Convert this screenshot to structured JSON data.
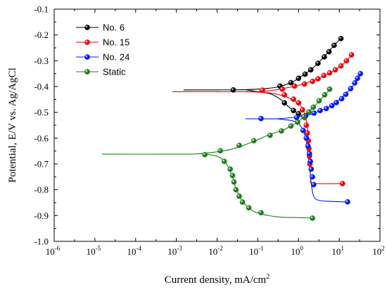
{
  "chart_data": {
    "type": "line",
    "xlabel": "Current density, mA/cm",
    "xlabel_sup": "2",
    "ylabel": "Potential, E/V vs. Ag/AgCl",
    "x_scale": "log",
    "xlim": [
      1e-06,
      100
    ],
    "ylim": [
      -1.0,
      -0.1
    ],
    "x_ticks": [
      {
        "value": 1e-06,
        "base": "10",
        "exp": "-6"
      },
      {
        "value": 1e-05,
        "base": "10",
        "exp": "-5"
      },
      {
        "value": 0.0001,
        "base": "10",
        "exp": "-4"
      },
      {
        "value": 0.001,
        "base": "10",
        "exp": "-3"
      },
      {
        "value": 0.01,
        "base": "10",
        "exp": "-2"
      },
      {
        "value": 0.1,
        "base": "10",
        "exp": "-1"
      },
      {
        "value": 1,
        "base": "10",
        "exp": "0"
      },
      {
        "value": 10,
        "base": "10",
        "exp": "1"
      },
      {
        "value": 100,
        "base": "10",
        "exp": "2"
      }
    ],
    "y_ticks": [
      "-0.1",
      "-0.2",
      "-0.3",
      "-0.4",
      "-0.5",
      "-0.6",
      "-0.7",
      "-0.8",
      "-0.9",
      "-1.0"
    ],
    "grid": false,
    "legend_position": "top-left",
    "series": [
      {
        "name": "No. 6",
        "color": "#000000",
        "line": [
          [
            0.0015,
            -0.413
          ],
          [
            0.01,
            -0.413
          ],
          [
            0.05,
            -0.412
          ],
          [
            0.15,
            -0.408
          ],
          [
            0.3,
            -0.402
          ],
          [
            0.5,
            -0.392
          ],
          [
            0.8,
            -0.378
          ],
          [
            1.2,
            -0.36
          ],
          [
            2,
            -0.335
          ],
          [
            3,
            -0.31
          ],
          [
            5,
            -0.272
          ],
          [
            8,
            -0.235
          ],
          [
            11,
            -0.214
          ]
        ],
        "line2": [
          [
            0.05,
            -0.412
          ],
          [
            0.1,
            -0.42
          ],
          [
            0.2,
            -0.428
          ],
          [
            0.35,
            -0.448
          ],
          [
            0.5,
            -0.47
          ],
          [
            0.7,
            -0.49
          ],
          [
            1.0,
            -0.505
          ],
          [
            1.3,
            -0.515
          ],
          [
            1.6,
            -0.52
          ]
        ],
        "markers": [
          [
            0.025,
            -0.413
          ],
          [
            0.35,
            -0.398
          ],
          [
            0.65,
            -0.385
          ],
          [
            1.0,
            -0.368
          ],
          [
            1.45,
            -0.352
          ],
          [
            2.0,
            -0.335
          ],
          [
            3.0,
            -0.31
          ],
          [
            4.3,
            -0.285
          ],
          [
            5.6,
            -0.265
          ],
          [
            7.5,
            -0.24
          ],
          [
            11,
            -0.214
          ],
          [
            0.45,
            -0.463
          ],
          [
            0.75,
            -0.493
          ],
          [
            1.0,
            -0.505
          ]
        ]
      },
      {
        "name": "No. 15",
        "color": "#e8000b",
        "line": [
          [
            0.0008,
            -0.42
          ],
          [
            0.01,
            -0.42
          ],
          [
            0.05,
            -0.42
          ],
          [
            0.15,
            -0.418
          ],
          [
            0.3,
            -0.412
          ],
          [
            0.6,
            -0.403
          ],
          [
            1.0,
            -0.395
          ],
          [
            2,
            -0.38
          ],
          [
            4,
            -0.36
          ],
          [
            8,
            -0.335
          ],
          [
            13,
            -0.31
          ],
          [
            22,
            -0.272
          ]
        ],
        "line2": [
          [
            0.05,
            -0.42
          ],
          [
            0.2,
            -0.425
          ],
          [
            0.5,
            -0.44
          ],
          [
            0.9,
            -0.46
          ],
          [
            1.2,
            -0.48
          ],
          [
            1.5,
            -0.52
          ],
          [
            1.7,
            -0.58
          ],
          [
            1.8,
            -0.64
          ],
          [
            1.9,
            -0.7
          ],
          [
            2.0,
            -0.76
          ],
          [
            2.3,
            -0.775
          ],
          [
            12,
            -0.776
          ]
        ],
        "markers": [
          [
            0.13,
            -0.414
          ],
          [
            0.4,
            -0.41
          ],
          [
            0.8,
            -0.398
          ],
          [
            1.4,
            -0.39
          ],
          [
            2.2,
            -0.38
          ],
          [
            3.0,
            -0.37
          ],
          [
            4.2,
            -0.357
          ],
          [
            5.8,
            -0.347
          ],
          [
            8.0,
            -0.335
          ],
          [
            11,
            -0.32
          ],
          [
            15,
            -0.3
          ],
          [
            20,
            -0.277
          ],
          [
            0.45,
            -0.432
          ],
          [
            0.75,
            -0.449
          ],
          [
            1.0,
            -0.463
          ],
          [
            1.25,
            -0.49
          ],
          [
            1.4,
            -0.52
          ],
          [
            1.55,
            -0.55
          ],
          [
            1.65,
            -0.58
          ],
          [
            1.75,
            -0.61
          ],
          [
            1.8,
            -0.64
          ],
          [
            1.85,
            -0.67
          ],
          [
            1.9,
            -0.7
          ],
          [
            12,
            -0.776
          ]
        ]
      },
      {
        "name": "No. 24",
        "color": "#0018f5",
        "line": [
          [
            0.05,
            -0.525
          ],
          [
            0.3,
            -0.525
          ],
          [
            0.7,
            -0.52
          ],
          [
            1.2,
            -0.515
          ],
          [
            2,
            -0.508
          ],
          [
            3,
            -0.497
          ],
          [
            5,
            -0.483
          ],
          [
            8,
            -0.465
          ],
          [
            12,
            -0.44
          ],
          [
            20,
            -0.405
          ],
          [
            35,
            -0.348
          ]
        ],
        "line2": [
          [
            0.3,
            -0.525
          ],
          [
            0.8,
            -0.535
          ],
          [
            1.2,
            -0.56
          ],
          [
            1.5,
            -0.6
          ],
          [
            1.7,
            -0.66
          ],
          [
            1.9,
            -0.72
          ],
          [
            2.0,
            -0.76
          ],
          [
            2.3,
            -0.82
          ],
          [
            3,
            -0.84
          ],
          [
            6,
            -0.845
          ],
          [
            16,
            -0.847
          ]
        ],
        "markers": [
          [
            0.12,
            -0.524
          ],
          [
            0.9,
            -0.52
          ],
          [
            1.5,
            -0.513
          ],
          [
            2.4,
            -0.503
          ],
          [
            3.4,
            -0.493
          ],
          [
            4.8,
            -0.485
          ],
          [
            6.6,
            -0.474
          ],
          [
            8.5,
            -0.462
          ],
          [
            11.5,
            -0.447
          ],
          [
            14.5,
            -0.43
          ],
          [
            19,
            -0.408
          ],
          [
            24,
            -0.386
          ],
          [
            28,
            -0.368
          ],
          [
            33,
            -0.35
          ],
          [
            1.3,
            -0.57
          ],
          [
            1.55,
            -0.6
          ],
          [
            1.7,
            -0.63
          ],
          [
            1.85,
            -0.66
          ],
          [
            1.95,
            -0.69
          ],
          [
            2.05,
            -0.72
          ],
          [
            2.2,
            -0.75
          ],
          [
            2.35,
            -0.78
          ],
          [
            16,
            -0.847
          ]
        ]
      },
      {
        "name": "Static",
        "color": "#1a7f1a",
        "line": [
          [
            1.5e-05,
            -0.662
          ],
          [
            0.001,
            -0.662
          ],
          [
            0.004,
            -0.66
          ],
          [
            0.02,
            -0.645
          ],
          [
            0.05,
            -0.625
          ],
          [
            0.1,
            -0.606
          ],
          [
            0.2,
            -0.585
          ],
          [
            0.4,
            -0.57
          ],
          [
            0.7,
            -0.55
          ],
          [
            1.0,
            -0.535
          ],
          [
            1.5,
            -0.51
          ],
          [
            2.5,
            -0.475
          ],
          [
            4.0,
            -0.44
          ],
          [
            6.0,
            -0.41
          ]
        ],
        "line2": [
          [
            0.004,
            -0.66
          ],
          [
            0.01,
            -0.67
          ],
          [
            0.015,
            -0.69
          ],
          [
            0.02,
            -0.72
          ],
          [
            0.025,
            -0.76
          ],
          [
            0.03,
            -0.8
          ],
          [
            0.04,
            -0.84
          ],
          [
            0.06,
            -0.87
          ],
          [
            0.1,
            -0.89
          ],
          [
            0.3,
            -0.905
          ],
          [
            1.0,
            -0.908
          ],
          [
            2.2,
            -0.91
          ]
        ],
        "markers": [
          [
            0.005,
            -0.664
          ],
          [
            0.012,
            -0.649
          ],
          [
            0.035,
            -0.628
          ],
          [
            0.08,
            -0.61
          ],
          [
            0.2,
            -0.589
          ],
          [
            0.38,
            -0.572
          ],
          [
            0.65,
            -0.553
          ],
          [
            0.95,
            -0.538
          ],
          [
            1.35,
            -0.517
          ],
          [
            1.8,
            -0.498
          ],
          [
            2.3,
            -0.48
          ],
          [
            3.2,
            -0.455
          ],
          [
            4.4,
            -0.432
          ],
          [
            5.8,
            -0.41
          ],
          [
            0.015,
            -0.69
          ],
          [
            0.021,
            -0.72
          ],
          [
            0.024,
            -0.745
          ],
          [
            0.026,
            -0.77
          ],
          [
            0.029,
            -0.8
          ],
          [
            0.035,
            -0.825
          ],
          [
            0.042,
            -0.848
          ],
          [
            0.06,
            -0.87
          ],
          [
            0.12,
            -0.889
          ],
          [
            2.2,
            -0.91
          ]
        ]
      }
    ]
  }
}
